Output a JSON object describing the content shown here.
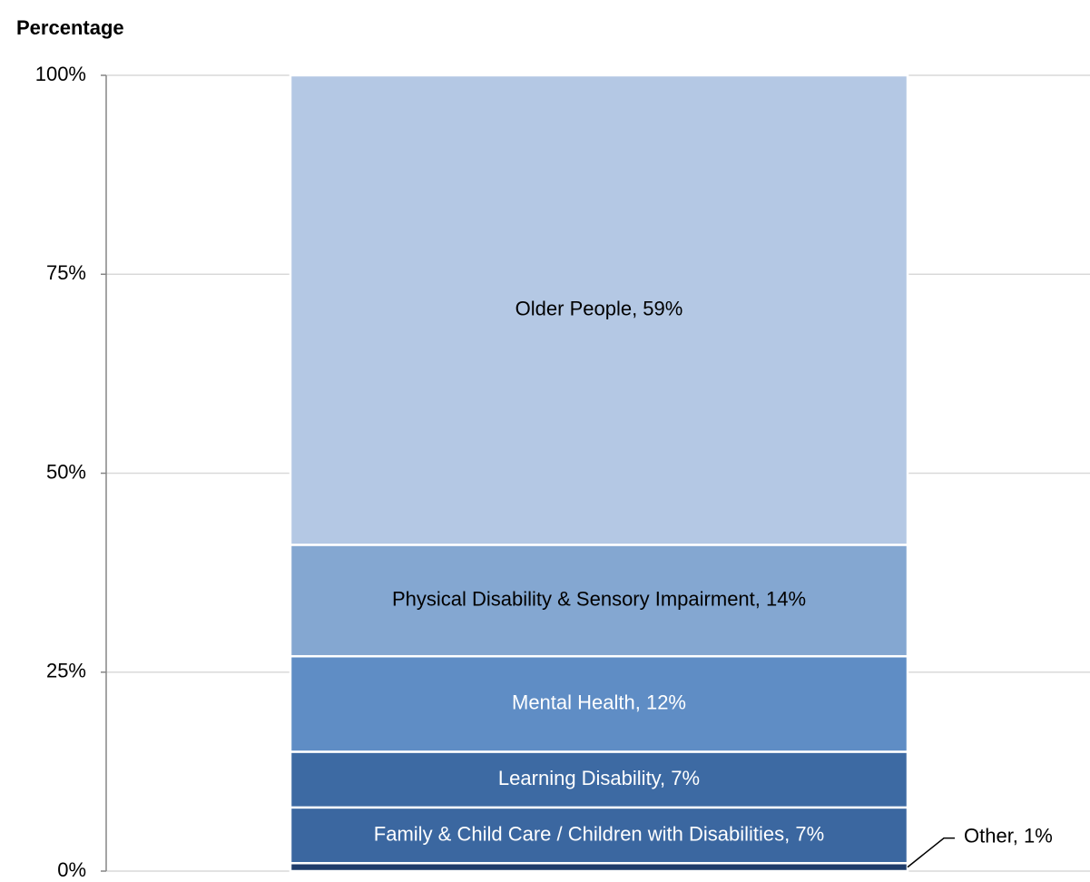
{
  "chart_data": {
    "type": "stacked-bar",
    "ylabel": "Percentage",
    "ylim": [
      0,
      100
    ],
    "yticks": [
      {
        "value": 0,
        "label": "0%"
      },
      {
        "value": 25,
        "label": "25%"
      },
      {
        "value": 50,
        "label": "50%"
      },
      {
        "value": 75,
        "label": "75%"
      },
      {
        "value": 100,
        "label": "100%"
      }
    ],
    "grid": true,
    "series": [
      {
        "color": "#1f3d6b",
        "values": [
          1
        ],
        "value_labels": [
          "Other, 1%"
        ],
        "label_color": "#000000",
        "label_position": "outside"
      },
      {
        "color": "#3b67a0",
        "values": [
          7
        ],
        "value_labels": [
          "Family & Child Care / Children with Disabilities, 7%"
        ],
        "label_color": "#ffffff",
        "label_position": "inside"
      },
      {
        "color": "#3d6aa3",
        "values": [
          7
        ],
        "value_labels": [
          "Learning Disability, 7%"
        ],
        "label_color": "#ffffff",
        "label_position": "inside"
      },
      {
        "color": "#5f8dc5",
        "values": [
          12
        ],
        "value_labels": [
          "Mental Health, 12%"
        ],
        "label_color": "#ffffff",
        "label_position": "inside"
      },
      {
        "color": "#84a7d1",
        "values": [
          14
        ],
        "value_labels": [
          "Physical Disability & Sensory Impairment, 14%"
        ],
        "label_color": "#000000",
        "label_position": "inside"
      },
      {
        "color": "#b4c8e4",
        "values": [
          59
        ],
        "value_labels": [
          "Older People, 59%"
        ],
        "label_color": "#000000",
        "label_position": "inside"
      }
    ]
  }
}
